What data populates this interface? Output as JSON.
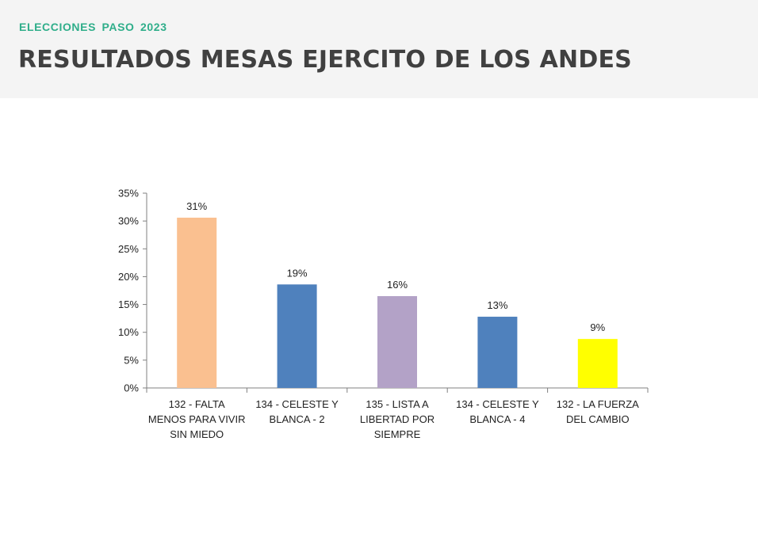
{
  "header": {
    "subtitle": "ELECCIONES  PASO  2023",
    "title": "RESULTADOS MESAS EJERCITO DE LOS ANDES"
  },
  "colors": {
    "header_bg": "#f4f4f4",
    "subtitle": "#2fae8a",
    "title": "#404040",
    "axis": "#808080",
    "text": "#222222"
  },
  "chart_data": {
    "type": "bar",
    "title": "",
    "xlabel": "",
    "ylabel": "",
    "ylim": [
      0,
      35
    ],
    "yticks": [
      0,
      5,
      10,
      15,
      20,
      25,
      30,
      35
    ],
    "ytick_labels": [
      "0%",
      "5%",
      "10%",
      "15%",
      "20%",
      "25%",
      "30%",
      "35%"
    ],
    "grid": false,
    "legend": "none",
    "categories": [
      [
        "132 - FALTA",
        "MENOS PARA VIVIR",
        "SIN MIEDO"
      ],
      [
        "134 - CELESTE Y",
        "BLANCA - 2"
      ],
      [
        "135 - LISTA A",
        "LIBERTAD POR",
        "SIEMPRE"
      ],
      [
        "134 - CELESTE Y",
        "BLANCA - 4"
      ],
      [
        "132 - LA FUERZA",
        "DEL CAMBIO"
      ]
    ],
    "values": [
      30.6,
      18.6,
      16.5,
      12.8,
      8.8
    ],
    "data_labels": [
      "31%",
      "19%",
      "16%",
      "13%",
      "9%"
    ],
    "bar_colors": [
      "#fac090",
      "#4f81bd",
      "#b3a2c7",
      "#4f81bd",
      "#ffff00"
    ]
  }
}
